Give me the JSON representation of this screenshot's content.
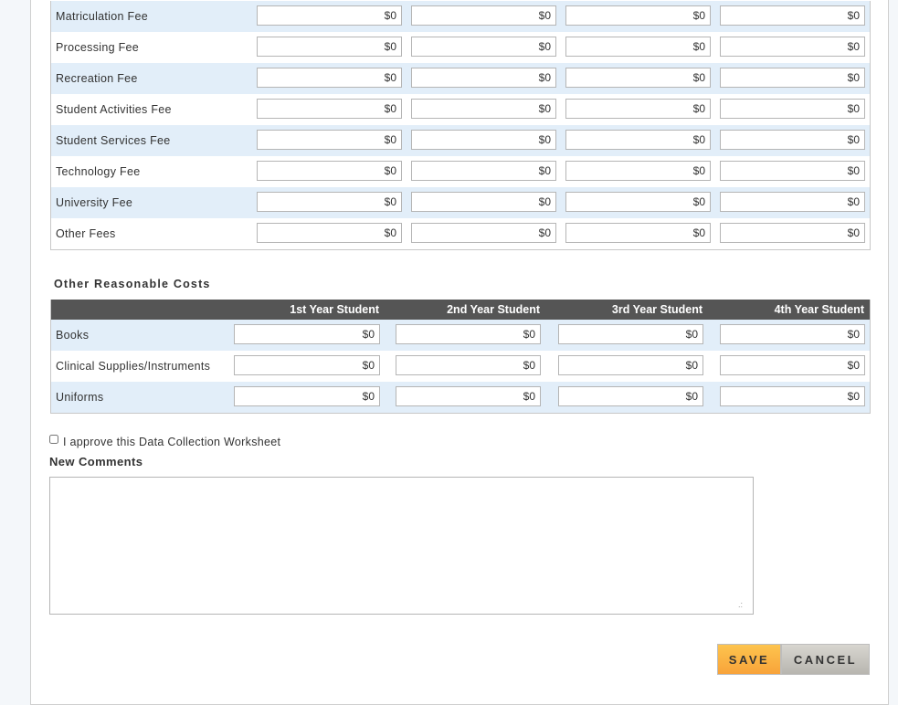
{
  "fees": {
    "rows": [
      {
        "label": "Matriculation Fee",
        "values": [
          "$0",
          "$0",
          "$0",
          "$0"
        ]
      },
      {
        "label": "Processing Fee",
        "values": [
          "$0",
          "$0",
          "$0",
          "$0"
        ]
      },
      {
        "label": "Recreation Fee",
        "values": [
          "$0",
          "$0",
          "$0",
          "$0"
        ]
      },
      {
        "label": "Student Activities Fee",
        "values": [
          "$0",
          "$0",
          "$0",
          "$0"
        ]
      },
      {
        "label": "Student Services Fee",
        "values": [
          "$0",
          "$0",
          "$0",
          "$0"
        ]
      },
      {
        "label": "Technology Fee",
        "values": [
          "$0",
          "$0",
          "$0",
          "$0"
        ]
      },
      {
        "label": "University Fee",
        "values": [
          "$0",
          "$0",
          "$0",
          "$0"
        ]
      },
      {
        "label": "Other Fees",
        "values": [
          "$0",
          "$0",
          "$0",
          "$0"
        ]
      }
    ]
  },
  "other_costs": {
    "title": "Other Reasonable Costs",
    "columns": [
      "1st Year Student",
      "2nd Year Student",
      "3rd Year Student",
      "4th Year Student"
    ],
    "rows": [
      {
        "label": "Books",
        "values": [
          "$0",
          "$0",
          "$0",
          "$0"
        ]
      },
      {
        "label": "Clinical Supplies/Instruments",
        "values": [
          "$0",
          "$0",
          "$0",
          "$0"
        ]
      },
      {
        "label": "Uniforms",
        "values": [
          "$0",
          "$0",
          "$0",
          "$0"
        ]
      }
    ]
  },
  "approve": {
    "label": "I approve this Data Collection Worksheet",
    "checked": false
  },
  "comments": {
    "label": "New Comments",
    "value": ""
  },
  "buttons": {
    "save": "SAVE",
    "cancel": "CANCEL"
  },
  "colors": {
    "row_alt": "#e2eef9",
    "header_bg": "#555555",
    "save": "#f8a33a",
    "cancel": "#bdbbb5"
  }
}
